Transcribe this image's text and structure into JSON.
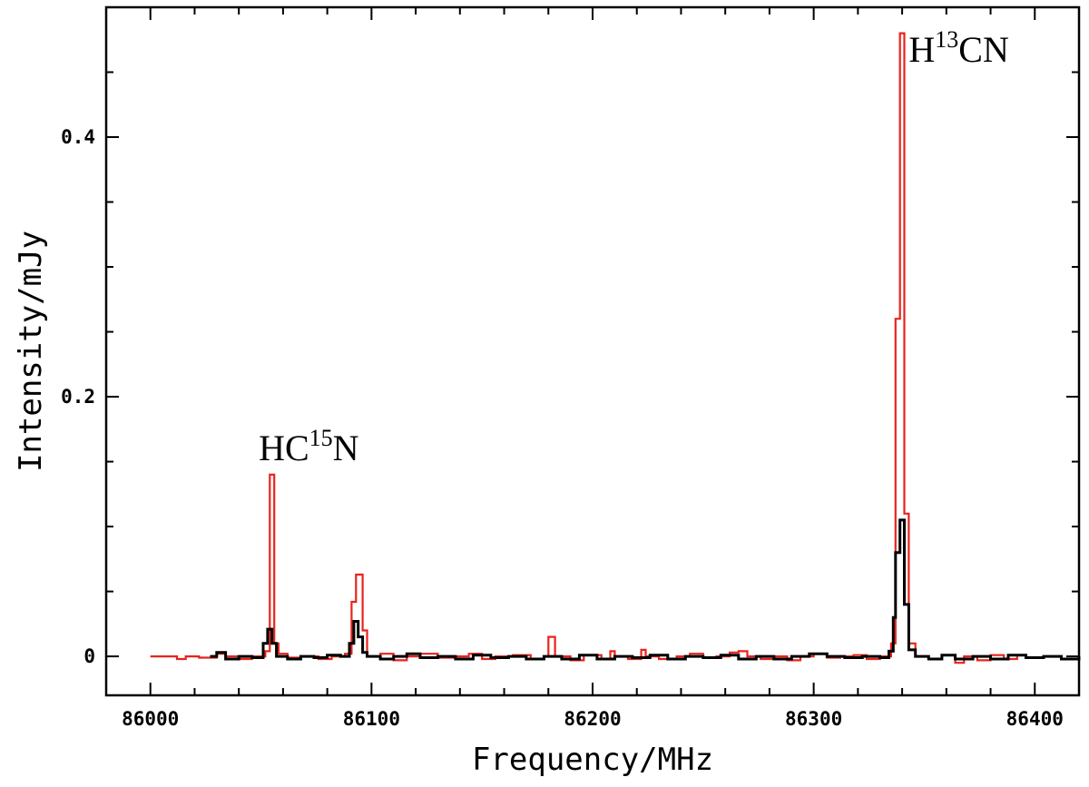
{
  "chart_data": {
    "type": "line",
    "title": "",
    "xlabel": "Frequency/MHz",
    "ylabel": "Intensity/mJy",
    "xlim": [
      85980,
      86420
    ],
    "ylim": [
      -0.03,
      0.5
    ],
    "xticks": [
      86000,
      86100,
      86200,
      86300,
      86400
    ],
    "xtick_labels": [
      "86000",
      "86100",
      "86200",
      "86300",
      "86400"
    ],
    "yticks": [
      0,
      0.2,
      0.4
    ],
    "ytick_labels": [
      "0",
      "0.2",
      "0.4"
    ],
    "grid": false,
    "step": true,
    "series": [
      {
        "color": "#e8231c",
        "points": [
          [
            86000,
            0
          ],
          [
            86008,
            0
          ],
          [
            86012,
            -0.002
          ],
          [
            86016,
            0
          ],
          [
            86022,
            -0.001
          ],
          [
            86030,
            0.002
          ],
          [
            86034,
            0
          ],
          [
            86040,
            -0.002
          ],
          [
            86046,
            0
          ],
          [
            86052,
            0.004
          ],
          [
            86054,
            0.14
          ],
          [
            86056,
            0.01
          ],
          [
            86058,
            0.002
          ],
          [
            86062,
            -0.001
          ],
          [
            86068,
            0
          ],
          [
            86076,
            -0.002
          ],
          [
            86082,
            0
          ],
          [
            86088,
            0.002
          ],
          [
            86091,
            0.042
          ],
          [
            86093,
            0.063
          ],
          [
            86096,
            0.02
          ],
          [
            86098,
            0
          ],
          [
            86104,
            0.002
          ],
          [
            86110,
            -0.003
          ],
          [
            86116,
            0
          ],
          [
            86122,
            0.002
          ],
          [
            86130,
            -0.001
          ],
          [
            86138,
            0
          ],
          [
            86144,
            0.002
          ],
          [
            86150,
            -0.002
          ],
          [
            86156,
            0
          ],
          [
            86164,
            0.001
          ],
          [
            86172,
            -0.002
          ],
          [
            86178,
            0
          ],
          [
            86180,
            0.015
          ],
          [
            86183,
            0
          ],
          [
            86190,
            -0.003
          ],
          [
            86196,
            0.001
          ],
          [
            86204,
            -0.002
          ],
          [
            86208,
            0.004
          ],
          [
            86210,
            0
          ],
          [
            86216,
            -0.002
          ],
          [
            86222,
            0.005
          ],
          [
            86224,
            0
          ],
          [
            86230,
            -0.002
          ],
          [
            86238,
            0
          ],
          [
            86244,
            0.002
          ],
          [
            86250,
            -0.001
          ],
          [
            86256,
            0
          ],
          [
            86262,
            0.003
          ],
          [
            86266,
            0.004
          ],
          [
            86270,
            0
          ],
          [
            86276,
            -0.002
          ],
          [
            86282,
            0
          ],
          [
            86288,
            -0.003
          ],
          [
            86294,
            0
          ],
          [
            86300,
            0.002
          ],
          [
            86306,
            -0.001
          ],
          [
            86312,
            0
          ],
          [
            86318,
            0.001
          ],
          [
            86324,
            -0.002
          ],
          [
            86330,
            0
          ],
          [
            86335,
            0.01
          ],
          [
            86337,
            0.26
          ],
          [
            86339,
            0.48
          ],
          [
            86341,
            0.11
          ],
          [
            86343,
            0.01
          ],
          [
            86346,
            0
          ],
          [
            86352,
            -0.002
          ],
          [
            86358,
            0.001
          ],
          [
            86364,
            -0.005
          ],
          [
            86368,
            0
          ],
          [
            86374,
            -0.003
          ],
          [
            86380,
            0.001
          ],
          [
            86386,
            -0.002
          ],
          [
            86392,
            0
          ]
        ]
      },
      {
        "color": "#000000",
        "points": [
          [
            86027,
            0
          ],
          [
            86030,
            0.003
          ],
          [
            86034,
            -0.002
          ],
          [
            86040,
            0
          ],
          [
            86046,
            -0.001
          ],
          [
            86051,
            0.01
          ],
          [
            86053,
            0.021
          ],
          [
            86055,
            0.01
          ],
          [
            86057,
            0
          ],
          [
            86062,
            -0.002
          ],
          [
            86068,
            0
          ],
          [
            86074,
            -0.001
          ],
          [
            86080,
            0.001
          ],
          [
            86086,
            0
          ],
          [
            86090,
            0.01
          ],
          [
            86092,
            0.027
          ],
          [
            86094,
            0.015
          ],
          [
            86096,
            0.003
          ],
          [
            86098,
            0
          ],
          [
            86104,
            -0.002
          ],
          [
            86110,
            0
          ],
          [
            86116,
            0.002
          ],
          [
            86122,
            -0.001
          ],
          [
            86130,
            0
          ],
          [
            86138,
            -0.002
          ],
          [
            86146,
            0.001
          ],
          [
            86154,
            -0.001
          ],
          [
            86162,
            0
          ],
          [
            86170,
            -0.002
          ],
          [
            86178,
            0
          ],
          [
            86186,
            -0.002
          ],
          [
            86194,
            0.001
          ],
          [
            86202,
            -0.002
          ],
          [
            86210,
            0
          ],
          [
            86218,
            -0.001
          ],
          [
            86226,
            0.001
          ],
          [
            86234,
            -0.002
          ],
          [
            86242,
            0
          ],
          [
            86250,
            -0.001
          ],
          [
            86258,
            0.001
          ],
          [
            86266,
            -0.002
          ],
          [
            86274,
            0
          ],
          [
            86282,
            -0.002
          ],
          [
            86290,
            0
          ],
          [
            86298,
            0.002
          ],
          [
            86306,
            0
          ],
          [
            86314,
            -0.001
          ],
          [
            86322,
            0
          ],
          [
            86330,
            -0.001
          ],
          [
            86334,
            0.004
          ],
          [
            86336,
            0.03
          ],
          [
            86337,
            0.08
          ],
          [
            86339,
            0.105
          ],
          [
            86341,
            0.04
          ],
          [
            86343,
            0.005
          ],
          [
            86346,
            0
          ],
          [
            86352,
            -0.002
          ],
          [
            86358,
            0.001
          ],
          [
            86364,
            -0.002
          ],
          [
            86372,
            0
          ],
          [
            86380,
            -0.002
          ],
          [
            86388,
            0.001
          ],
          [
            86396,
            -0.001
          ],
          [
            86404,
            0
          ],
          [
            86412,
            -0.002
          ],
          [
            86420,
            0
          ]
        ]
      }
    ],
    "annotations": [
      {
        "base": "HC",
        "sup": "15",
        "tail": "N",
        "x": 86049,
        "y": 0.151
      },
      {
        "base": "H",
        "sup": "13",
        "tail": "CN",
        "x": 86343,
        "y": 0.458
      }
    ]
  }
}
